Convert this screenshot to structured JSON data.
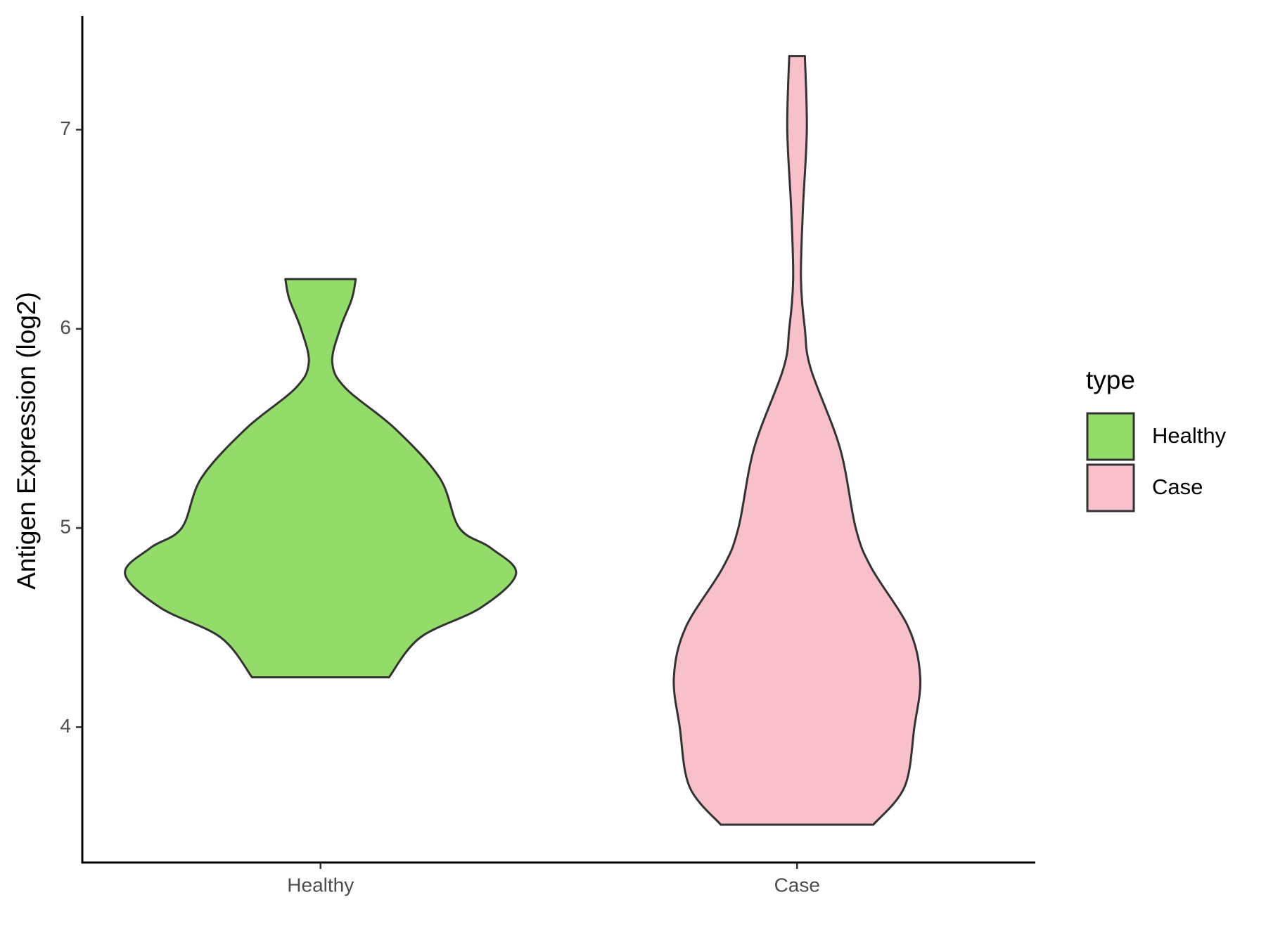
{
  "chart_data": {
    "type": "violin",
    "y_label": "Antigen Expression (log2)",
    "categories": [
      "Healthy",
      "Case"
    ],
    "series": [
      {
        "name": "Healthy",
        "color": "#93dc6a",
        "y": [
          4.25,
          4.45,
          4.6,
          4.77,
          4.9,
          5.0,
          5.25,
          5.5,
          5.7,
          5.83,
          6.0,
          6.15,
          6.25
        ],
        "width": [
          0.35,
          0.51,
          0.82,
          1.0,
          0.87,
          0.71,
          0.61,
          0.38,
          0.13,
          0.06,
          0.1,
          0.16,
          0.18
        ]
      },
      {
        "name": "Case",
        "color": "#f7c0cb",
        "y": [
          3.51,
          3.7,
          4.0,
          4.25,
          4.5,
          4.8,
          5.0,
          5.4,
          5.8,
          6.0,
          6.25,
          6.6,
          7.0,
          7.37
        ],
        "width": [
          0.39,
          0.55,
          0.6,
          0.63,
          0.57,
          0.38,
          0.3,
          0.22,
          0.07,
          0.04,
          0.02,
          0.03,
          0.05,
          0.04
        ]
      }
    ],
    "ylim": [
      3.32,
      7.57
    ],
    "yticks": [
      4,
      5,
      6,
      7
    ],
    "legend_title": "type",
    "legend_position": "right"
  }
}
